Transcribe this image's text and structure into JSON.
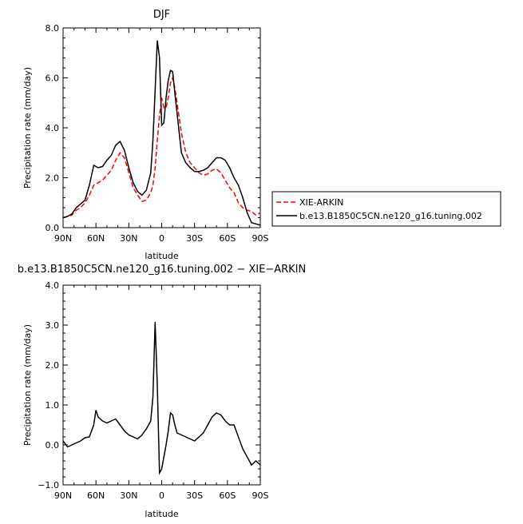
{
  "chart_data": [
    {
      "type": "line",
      "title": "DJF",
      "xlabel": "latitude",
      "ylabel": "Precipitation rate  (mm/day)",
      "x_ticks": [
        {
          "value": 90,
          "label": "90N"
        },
        {
          "value": 60,
          "label": "60N"
        },
        {
          "value": 30,
          "label": "30N"
        },
        {
          "value": 0,
          "label": "0"
        },
        {
          "value": -30,
          "label": "30S"
        },
        {
          "value": -60,
          "label": "60S"
        },
        {
          "value": -90,
          "label": "90S"
        }
      ],
      "y_ticks": [
        {
          "value": 0,
          "label": "0.0"
        },
        {
          "value": 2,
          "label": "2.0"
        },
        {
          "value": 4,
          "label": "4.0"
        },
        {
          "value": 6,
          "label": "6.0"
        },
        {
          "value": 8,
          "label": "8.0"
        }
      ],
      "xlim": [
        90,
        -90
      ],
      "ylim": [
        0,
        8
      ],
      "legend_position": "right",
      "series": [
        {
          "name": "XIE-ARKIN",
          "color": "#ff0000",
          "dash": "dashed",
          "x": [
            90,
            86,
            82,
            78,
            74,
            70,
            66,
            62,
            58,
            54,
            50,
            46,
            42,
            38,
            34,
            30,
            26,
            22,
            18,
            14,
            10,
            8,
            6,
            4,
            2,
            0,
            -2,
            -4,
            -6,
            -8,
            -10,
            -12,
            -14,
            -18,
            -22,
            -26,
            -30,
            -34,
            -38,
            -42,
            -46,
            -50,
            -54,
            -58,
            -62,
            -66,
            -70,
            -74,
            -78,
            -82,
            -86,
            -90
          ],
          "y": [
            0.4,
            0.45,
            0.5,
            0.7,
            0.8,
            1.0,
            1.3,
            1.7,
            1.8,
            1.9,
            2.1,
            2.3,
            2.7,
            3.0,
            2.8,
            2.2,
            1.6,
            1.3,
            1.05,
            1.1,
            1.4,
            1.7,
            2.4,
            3.5,
            4.5,
            5.2,
            4.8,
            4.8,
            5.2,
            5.8,
            6.0,
            5.6,
            5.0,
            3.8,
            3.0,
            2.6,
            2.4,
            2.2,
            2.1,
            2.15,
            2.3,
            2.35,
            2.2,
            1.9,
            1.6,
            1.4,
            1.0,
            0.8,
            0.7,
            0.65,
            0.5,
            0.6
          ]
        },
        {
          "name": "b.e13.B1850C5CN.ne120_g16.tuning.002",
          "color": "#000000",
          "dash": "solid",
          "x": [
            90,
            86,
            82,
            78,
            74,
            70,
            66,
            62,
            58,
            54,
            50,
            46,
            42,
            38,
            34,
            30,
            26,
            22,
            18,
            14,
            10,
            8,
            6,
            4,
            2,
            0,
            -2,
            -4,
            -6,
            -8,
            -10,
            -12,
            -14,
            -18,
            -22,
            -26,
            -30,
            -34,
            -38,
            -42,
            -46,
            -50,
            -54,
            -58,
            -62,
            -66,
            -70,
            -74,
            -78,
            -82,
            -86,
            -90
          ],
          "y": [
            0.4,
            0.45,
            0.55,
            0.8,
            0.95,
            1.1,
            1.7,
            2.5,
            2.4,
            2.45,
            2.7,
            2.9,
            3.3,
            3.45,
            3.1,
            2.4,
            1.8,
            1.45,
            1.3,
            1.5,
            2.2,
            3.5,
            5.5,
            7.5,
            6.8,
            4.1,
            4.2,
            5.2,
            5.9,
            6.3,
            6.25,
            5.4,
            4.6,
            3.0,
            2.6,
            2.4,
            2.25,
            2.25,
            2.3,
            2.4,
            2.6,
            2.8,
            2.8,
            2.7,
            2.4,
            2.0,
            1.7,
            1.2,
            0.6,
            0.2,
            0.15,
            0.1
          ]
        }
      ]
    },
    {
      "type": "line",
      "title": "b.e13.B1850C5CN.ne120_g16.tuning.002  −  XIE−ARKIN",
      "xlabel": "latitude",
      "ylabel": "Precipitation rate  (mm/day)",
      "x_ticks": [
        {
          "value": 90,
          "label": "90N"
        },
        {
          "value": 60,
          "label": "60N"
        },
        {
          "value": 30,
          "label": "30N"
        },
        {
          "value": 0,
          "label": "0"
        },
        {
          "value": -30,
          "label": "30S"
        },
        {
          "value": -60,
          "label": "60S"
        },
        {
          "value": -90,
          "label": "90S"
        }
      ],
      "y_ticks": [
        {
          "value": -1,
          "label": "−1.0"
        },
        {
          "value": 0,
          "label": "0.0"
        },
        {
          "value": 1,
          "label": "1.0"
        },
        {
          "value": 2,
          "label": "2.0"
        },
        {
          "value": 3,
          "label": "3.0"
        },
        {
          "value": 4,
          "label": "4.0"
        }
      ],
      "xlim": [
        90,
        -90
      ],
      "ylim": [
        -1,
        4
      ],
      "series": [
        {
          "color": "#000000",
          "dash": "solid",
          "x": [
            90,
            86,
            82,
            78,
            74,
            70,
            66,
            62,
            60,
            58,
            54,
            50,
            46,
            42,
            38,
            34,
            30,
            26,
            22,
            18,
            14,
            10,
            8,
            6,
            4,
            2,
            0,
            -2,
            -4,
            -6,
            -8,
            -10,
            -12,
            -14,
            -18,
            -22,
            -26,
            -30,
            -34,
            -38,
            -42,
            -46,
            -50,
            -54,
            -58,
            -62,
            -66,
            -70,
            -74,
            -78,
            -82,
            -86,
            -90
          ],
          "y": [
            0.1,
            -0.05,
            0.0,
            0.05,
            0.1,
            0.18,
            0.2,
            0.5,
            0.87,
            0.7,
            0.6,
            0.55,
            0.6,
            0.65,
            0.5,
            0.35,
            0.25,
            0.2,
            0.15,
            0.25,
            0.4,
            0.6,
            1.2,
            3.08,
            1.5,
            -0.7,
            -0.6,
            -0.3,
            0.0,
            0.35,
            0.8,
            0.75,
            0.5,
            0.3,
            0.25,
            0.2,
            0.15,
            0.1,
            0.2,
            0.3,
            0.5,
            0.7,
            0.8,
            0.75,
            0.6,
            0.5,
            0.5,
            0.2,
            -0.1,
            -0.3,
            -0.5,
            -0.4,
            -0.5
          ]
        }
      ]
    }
  ]
}
